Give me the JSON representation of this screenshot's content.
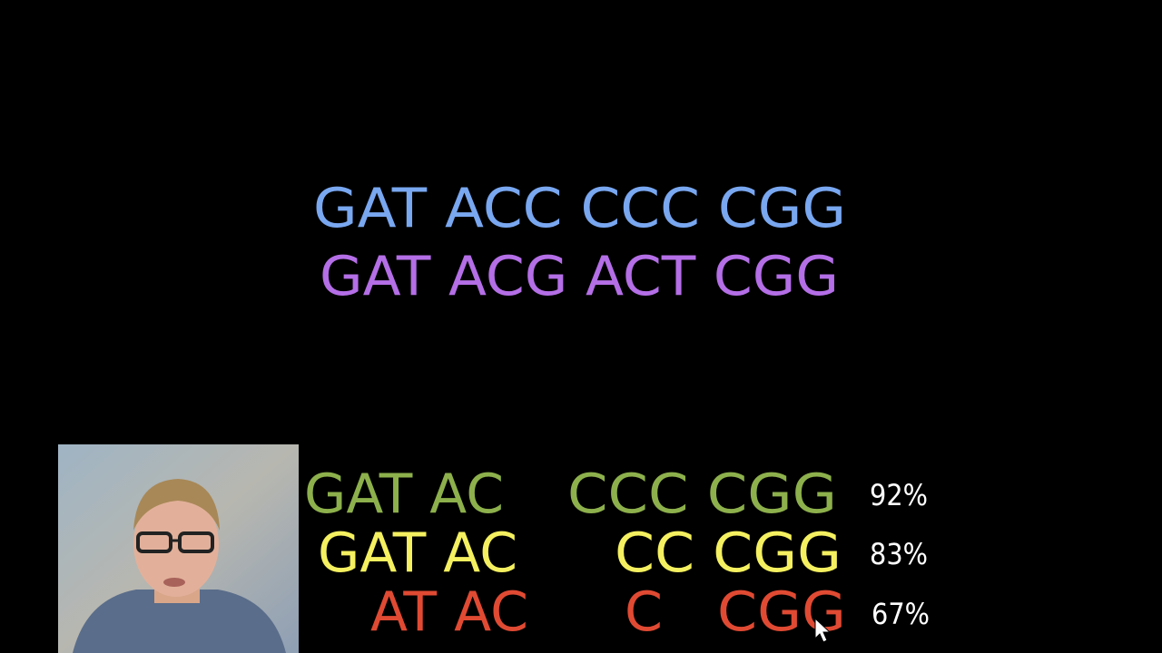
{
  "top_sequences": [
    {
      "text": "GAT ACC CCC CGG",
      "color": "#79a7f0"
    },
    {
      "text": "GAT ACG ACT CGG",
      "color": "#b46ee6"
    }
  ],
  "reads": [
    {
      "segments": [
        "GAT AC",
        "CCC CGG"
      ],
      "identity": "92%",
      "color": "#8db04c"
    },
    {
      "segments": [
        "GAT AC",
        "CC CGG"
      ],
      "identity": "83%",
      "color": "#f4f060"
    },
    {
      "segments": [
        "AT AC",
        "C",
        "CGG"
      ],
      "identity": "67%",
      "color": "#e04a33"
    }
  ]
}
